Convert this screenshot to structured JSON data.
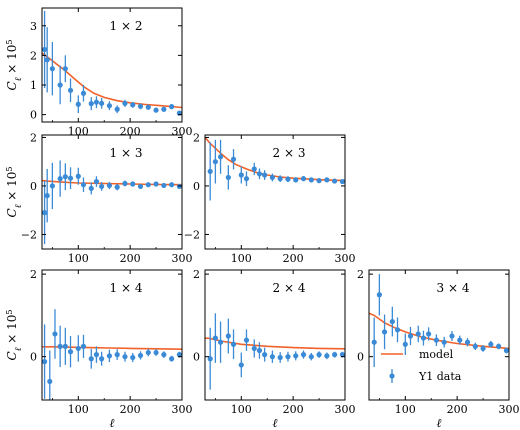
{
  "figure": {
    "colors": {
      "model": "#f0622a",
      "data": "#3a8ad6",
      "axes": "#000000"
    },
    "legend": {
      "placement": "lower-right of 3×4 panel",
      "model_label": "model",
      "data_label": "Y1 data"
    },
    "ylabel_text": "C",
    "ylabel_sub": "ℓ",
    "ylabel_rest": " × 10",
    "ylabel_exp": "5",
    "xlabel": "ℓ"
  },
  "chart_data": [
    {
      "type": "scatter",
      "panel": "1 × 2",
      "title": "1 × 2",
      "xlim": [
        30,
        300
      ],
      "ylim": [
        -0.25,
        3.6
      ],
      "xticks": [
        100,
        200,
        300
      ],
      "yticks": [
        0,
        1,
        2,
        3
      ],
      "x": [
        35,
        40,
        50,
        65,
        75,
        85,
        100,
        110,
        125,
        135,
        145,
        160,
        175,
        190,
        205,
        220,
        235,
        250,
        265,
        280,
        295
      ],
      "series": [
        {
          "name": "model",
          "kind": "line",
          "x": [
            30,
            40,
            50,
            60,
            75,
            90,
            110,
            130,
            150,
            175,
            200,
            230,
            260,
            300
          ],
          "values": [
            2.08,
            1.95,
            1.82,
            1.68,
            1.48,
            1.25,
            0.95,
            0.72,
            0.58,
            0.47,
            0.4,
            0.34,
            0.3,
            0.24
          ]
        },
        {
          "name": "Y1 data",
          "kind": "errorbar",
          "values": [
            2.2,
            1.85,
            1.55,
            1.0,
            1.55,
            0.82,
            0.35,
            0.72,
            0.37,
            0.42,
            0.38,
            0.3,
            0.18,
            0.38,
            0.33,
            0.28,
            0.25,
            0.15,
            0.18,
            0.27,
            0.05
          ],
          "err": [
            1.3,
            1.1,
            0.9,
            0.65,
            0.45,
            0.4,
            0.3,
            0.28,
            0.22,
            0.2,
            0.18,
            0.15,
            0.13,
            0.12,
            0.1,
            0.1,
            0.09,
            0.08,
            0.08,
            0.07,
            0.07
          ]
        }
      ]
    },
    {
      "type": "scatter",
      "panel": "1 × 3",
      "title": "1 × 3",
      "xlim": [
        30,
        300
      ],
      "ylim": [
        -2.6,
        2.1
      ],
      "xticks": [
        100,
        200,
        300
      ],
      "yticks": [
        -2,
        0,
        2
      ],
      "x": [
        35,
        40,
        50,
        65,
        75,
        85,
        100,
        110,
        125,
        135,
        145,
        160,
        175,
        190,
        205,
        220,
        235,
        250,
        265,
        280,
        295
      ],
      "series": [
        {
          "name": "model",
          "kind": "line",
          "x": [
            30,
            40,
            60,
            100,
            150,
            200,
            250,
            300
          ],
          "values": [
            0.22,
            0.2,
            0.17,
            0.12,
            0.1,
            0.08,
            0.06,
            0.05
          ]
        },
        {
          "name": "Y1 data",
          "kind": "errorbar",
          "values": [
            -1.1,
            -0.4,
            0.0,
            0.3,
            0.38,
            0.32,
            0.4,
            0.05,
            -0.1,
            0.18,
            -0.02,
            0.02,
            -0.05,
            0.1,
            0.08,
            -0.02,
            0.05,
            0.08,
            0.02,
            0.05,
            -0.02
          ],
          "err": [
            1.3,
            1.1,
            0.95,
            0.75,
            0.55,
            0.45,
            0.35,
            0.3,
            0.25,
            0.22,
            0.18,
            0.15,
            0.13,
            0.12,
            0.11,
            0.1,
            0.09,
            0.08,
            0.08,
            0.07,
            0.07
          ]
        }
      ]
    },
    {
      "type": "scatter",
      "panel": "2 × 3",
      "title": "2 × 3",
      "xlim": [
        30,
        300
      ],
      "ylim": [
        -2.6,
        2.1
      ],
      "xticks": [
        100,
        200,
        300
      ],
      "yticks": [
        -2,
        0,
        2
      ],
      "x": [
        40,
        50,
        60,
        75,
        85,
        100,
        110,
        125,
        135,
        145,
        160,
        175,
        190,
        205,
        220,
        235,
        250,
        265,
        280,
        295
      ],
      "series": [
        {
          "name": "model",
          "kind": "line",
          "x": [
            30,
            40,
            50,
            60,
            75,
            90,
            110,
            130,
            150,
            175,
            200,
            230,
            260,
            300
          ],
          "values": [
            2.0,
            1.75,
            1.55,
            1.35,
            1.08,
            0.88,
            0.7,
            0.55,
            0.45,
            0.37,
            0.32,
            0.28,
            0.25,
            0.22
          ]
        },
        {
          "name": "Y1 data",
          "kind": "errorbar",
          "values": [
            0.6,
            1.0,
            1.2,
            0.35,
            1.1,
            0.45,
            0.3,
            0.7,
            0.5,
            0.45,
            0.35,
            0.3,
            0.28,
            0.25,
            0.3,
            0.25,
            0.22,
            0.25,
            0.2,
            0.18
          ],
          "err": [
            1.2,
            0.9,
            0.7,
            0.5,
            0.42,
            0.35,
            0.3,
            0.25,
            0.22,
            0.2,
            0.16,
            0.14,
            0.12,
            0.11,
            0.1,
            0.09,
            0.08,
            0.08,
            0.07,
            0.07
          ]
        }
      ]
    },
    {
      "type": "scatter",
      "panel": "1 × 4",
      "title": "1 × 4",
      "xlim": [
        30,
        300
      ],
      "ylim": [
        -1.05,
        2.1
      ],
      "xticks": [
        100,
        200,
        300
      ],
      "yticks": [
        0,
        2
      ],
      "x": [
        35,
        45,
        55,
        65,
        75,
        85,
        100,
        110,
        125,
        135,
        145,
        160,
        175,
        190,
        205,
        220,
        235,
        250,
        265,
        280,
        295
      ],
      "series": [
        {
          "name": "model",
          "kind": "line",
          "x": [
            30,
            50,
            80,
            120,
            160,
            200,
            250,
            300
          ],
          "values": [
            0.24,
            0.24,
            0.23,
            0.22,
            0.21,
            0.2,
            0.19,
            0.18
          ]
        },
        {
          "name": "Y1 data",
          "kind": "errorbar",
          "values": [
            -0.12,
            -0.6,
            0.55,
            0.25,
            0.25,
            0.12,
            0.2,
            0.25,
            -0.05,
            0.05,
            -0.05,
            0.02,
            0.05,
            0.0,
            -0.02,
            0.03,
            0.1,
            0.1,
            0.05,
            -0.05,
            0.05
          ],
          "err": [
            0.9,
            0.75,
            0.6,
            0.5,
            0.45,
            0.38,
            0.32,
            0.28,
            0.24,
            0.2,
            0.17,
            0.15,
            0.13,
            0.12,
            0.11,
            0.1,
            0.09,
            0.08,
            0.08,
            0.07,
            0.07
          ]
        }
      ]
    },
    {
      "type": "scatter",
      "panel": "2 × 4",
      "title": "2 × 4",
      "xlim": [
        30,
        300
      ],
      "ylim": [
        -1.05,
        2.1
      ],
      "xticks": [
        100,
        200,
        300
      ],
      "yticks": [
        0,
        2
      ],
      "x": [
        40,
        50,
        60,
        75,
        85,
        100,
        110,
        125,
        135,
        145,
        160,
        175,
        190,
        205,
        220,
        235,
        250,
        265,
        280,
        295
      ],
      "series": [
        {
          "name": "model",
          "kind": "line",
          "x": [
            30,
            40,
            60,
            100,
            150,
            200,
            250,
            300
          ],
          "values": [
            0.45,
            0.44,
            0.38,
            0.3,
            0.25,
            0.22,
            0.2,
            0.19
          ]
        },
        {
          "name": "Y1 data",
          "kind": "errorbar",
          "values": [
            -0.05,
            0.45,
            0.35,
            0.5,
            0.3,
            -0.2,
            0.4,
            0.2,
            0.15,
            0.05,
            0.0,
            -0.02,
            0.0,
            0.02,
            0.05,
            0.0,
            0.05,
            0.02,
            0.05,
            0.05
          ],
          "err": [
            0.75,
            0.6,
            0.5,
            0.42,
            0.36,
            0.3,
            0.26,
            0.22,
            0.2,
            0.17,
            0.15,
            0.13,
            0.12,
            0.11,
            0.1,
            0.09,
            0.08,
            0.08,
            0.07,
            0.07
          ]
        }
      ]
    },
    {
      "type": "scatter",
      "panel": "3 × 4",
      "title": "3 × 4",
      "xlim": [
        30,
        300
      ],
      "ylim": [
        -1.05,
        2.1
      ],
      "xticks": [
        100,
        200,
        300
      ],
      "yticks": [
        0,
        2
      ],
      "x": [
        40,
        50,
        60,
        75,
        85,
        100,
        110,
        125,
        135,
        145,
        160,
        175,
        190,
        205,
        220,
        235,
        250,
        265,
        280,
        295
      ],
      "series": [
        {
          "name": "model",
          "kind": "line",
          "x": [
            30,
            40,
            60,
            80,
            100,
            130,
            160,
            200,
            250,
            300
          ],
          "values": [
            1.05,
            1.0,
            0.82,
            0.7,
            0.6,
            0.48,
            0.4,
            0.32,
            0.25,
            0.2
          ]
        },
        {
          "name": "Y1 data",
          "kind": "errorbar",
          "values": [
            0.35,
            1.5,
            0.6,
            0.85,
            0.65,
            0.3,
            0.5,
            0.55,
            0.45,
            0.55,
            0.4,
            0.35,
            0.5,
            0.4,
            0.35,
            0.25,
            0.2,
            0.3,
            0.25,
            0.15
          ],
          "err": [
            0.6,
            0.5,
            0.42,
            0.36,
            0.3,
            0.26,
            0.22,
            0.2,
            0.18,
            0.16,
            0.14,
            0.13,
            0.12,
            0.11,
            0.1,
            0.09,
            0.08,
            0.08,
            0.07,
            0.07
          ]
        }
      ]
    }
  ]
}
